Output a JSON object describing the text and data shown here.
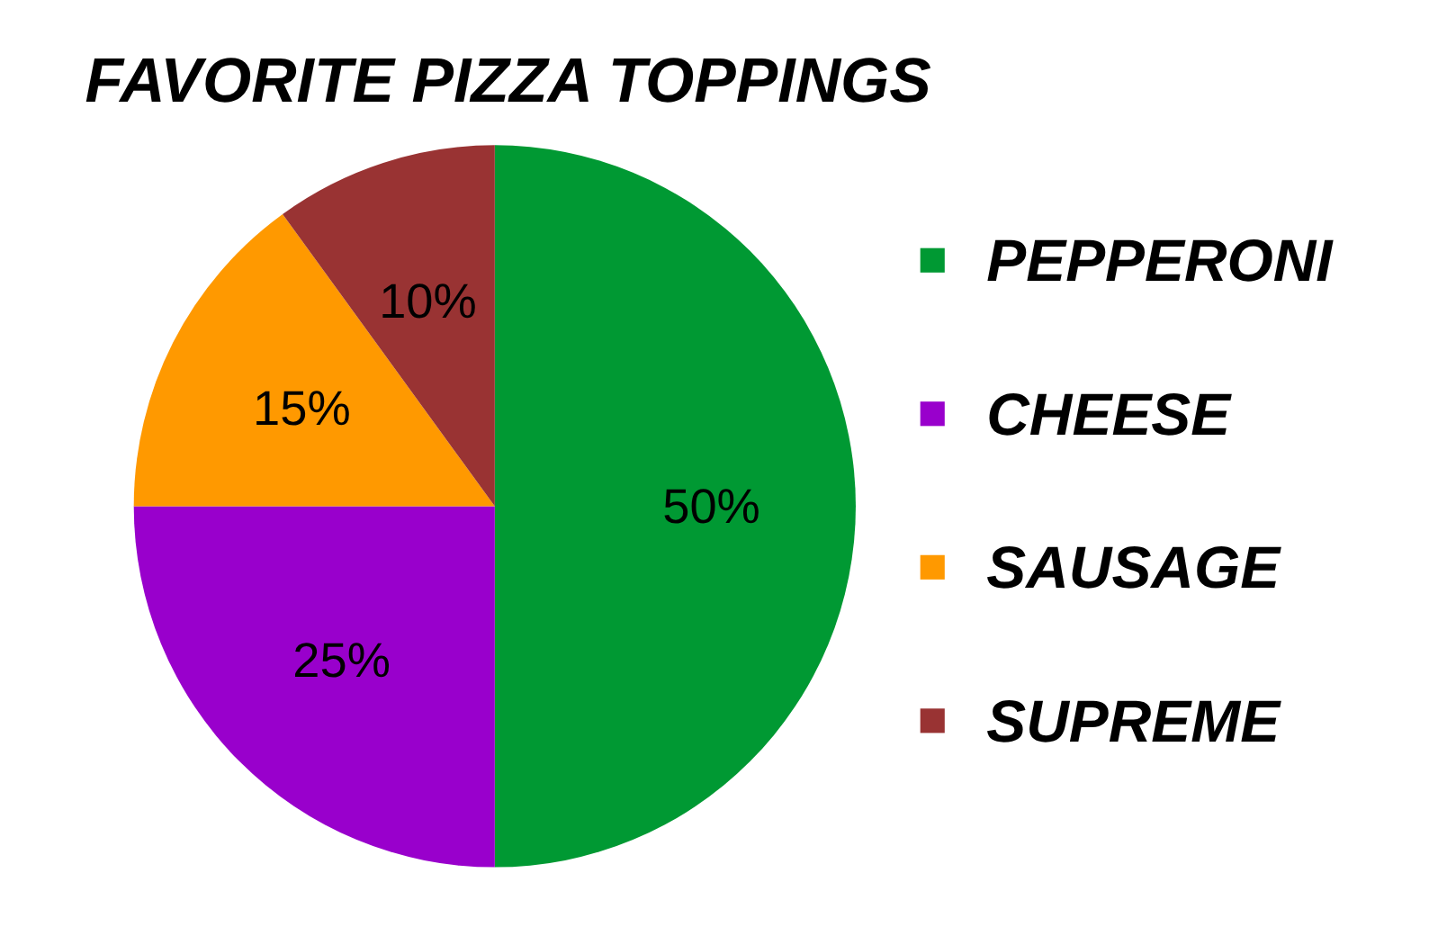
{
  "chart_data": {
    "type": "pie",
    "title": "FAVORITE PIZZA TOPPINGS",
    "categories": [
      "PEPPERONI",
      "CHEESE",
      "SAUSAGE",
      "SUPREME"
    ],
    "values": [
      50,
      25,
      15,
      10
    ],
    "colors": [
      "#009933",
      "#9900cc",
      "#ff9900",
      "#993333"
    ],
    "value_labels": [
      "50%",
      "25%",
      "15%",
      "10%"
    ],
    "legend": "right"
  }
}
